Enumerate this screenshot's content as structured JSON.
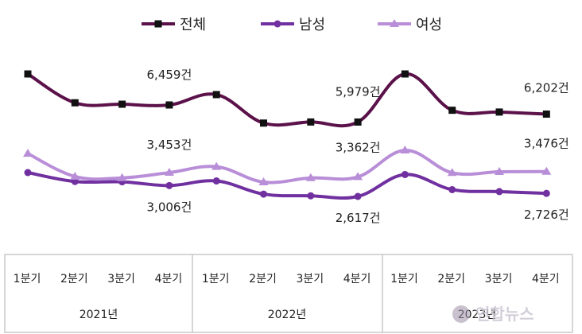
{
  "chart_data": {
    "type": "line",
    "categories": [
      "1분기",
      "2분기",
      "3분기",
      "4분기",
      "1분기",
      "2분기",
      "3분기",
      "4분기",
      "1분기",
      "2분기",
      "3분기",
      "4분기"
    ],
    "groups": [
      {
        "label": "2021년"
      },
      {
        "label": "2022년"
      },
      {
        "label": "2023년"
      }
    ],
    "series": [
      {
        "name": "전체",
        "color": "#5b1149",
        "marker": "square",
        "values": [
          7330,
          6520,
          6480,
          6459,
          6750,
          5950,
          5980,
          5979,
          7330,
          6310,
          6260,
          6202
        ]
      },
      {
        "name": "남성",
        "color": "#7030a0",
        "marker": "circle",
        "values": [
          3470,
          3150,
          3140,
          3006,
          3170,
          2700,
          2640,
          2617,
          3400,
          2860,
          2790,
          2726
        ]
      },
      {
        "name": "여성",
        "color": "#b98ed8",
        "marker": "triangle",
        "values": [
          3860,
          3370,
          3340,
          3453,
          3580,
          3250,
          3340,
          3362,
          3930,
          3450,
          3470,
          3476
        ]
      }
    ],
    "data_labels": [
      {
        "series": 0,
        "index": 3,
        "text": "6,459건"
      },
      {
        "series": 0,
        "index": 7,
        "text": "5,979건"
      },
      {
        "series": 0,
        "index": 11,
        "text": "6,202건"
      },
      {
        "series": 2,
        "index": 3,
        "text": "3,453건"
      },
      {
        "series": 2,
        "index": 7,
        "text": "3,362건"
      },
      {
        "series": 2,
        "index": 11,
        "text": "3,476건"
      },
      {
        "series": 1,
        "index": 3,
        "text": "3,006건"
      },
      {
        "series": 1,
        "index": 7,
        "text": "2,617건"
      },
      {
        "series": 1,
        "index": 11,
        "text": "2,726건"
      }
    ],
    "legend_position": "top-center",
    "grid": false
  },
  "watermark": {
    "text": "연합뉴스"
  }
}
